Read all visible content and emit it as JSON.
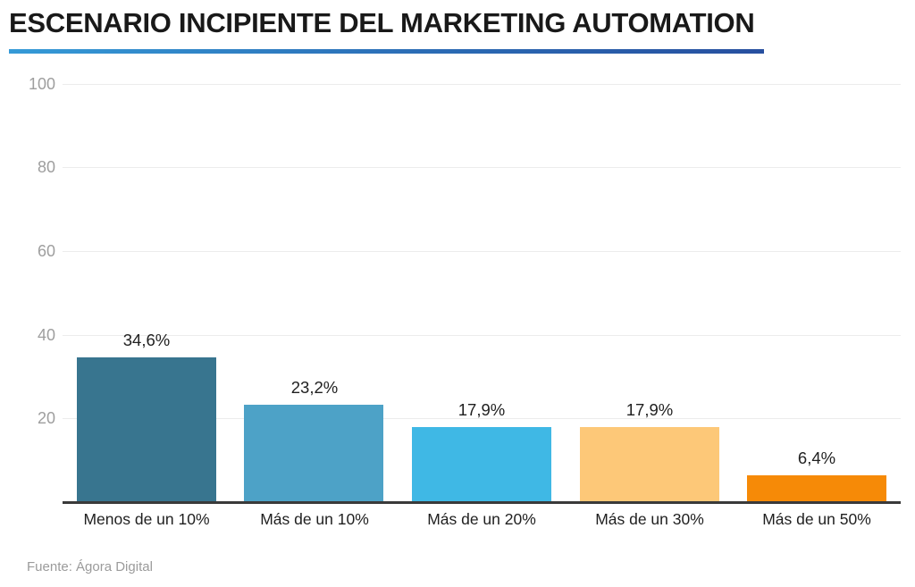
{
  "header": {
    "title": "ESCENARIO INCIPIENTE DEL MARKETING AUTOMATION"
  },
  "footer": {
    "source": "Fuente: Ágora Digital"
  },
  "colors": {
    "title_text": "#191919",
    "underline_gradient_start": "#359ad7",
    "underline_gradient_end": "#274f9f",
    "axis_line": "#3a3a3a",
    "gridline": "#ececec",
    "y_tick_label": "#9e9e9e",
    "value_label": "#1f1f1f",
    "source_text": "#9b9b9b"
  },
  "chart_data": {
    "type": "bar",
    "title": "ESCENARIO INCIPIENTE DEL MARKETING AUTOMATION",
    "categories": [
      "Menos de un 10%",
      "Más de un 10%",
      "Más de un 20%",
      "Más de un 30%",
      "Más de un 50%"
    ],
    "values": [
      34.6,
      23.2,
      17.9,
      17.9,
      6.4
    ],
    "value_labels": [
      "34,6%",
      "23,2%",
      "17,9%",
      "17,9%",
      "6,4%"
    ],
    "bar_colors": [
      "#38758f",
      "#4da2c7",
      "#3fb8e5",
      "#fdc878",
      "#f68a07"
    ],
    "xlabel": "",
    "ylabel": "",
    "ylim": [
      0,
      100
    ],
    "yticks": [
      20,
      40,
      60,
      80,
      100
    ],
    "grid": true,
    "legend": false,
    "source": "Fuente: Ágora Digital"
  }
}
